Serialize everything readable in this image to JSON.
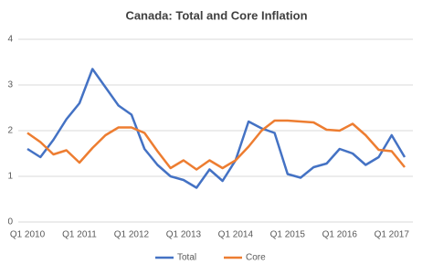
{
  "chart_data": {
    "type": "line",
    "title": "Canada: Total and Core Inflation",
    "categories": [
      "Q1 2010",
      null,
      null,
      null,
      "Q1 2011",
      null,
      null,
      null,
      "Q1 2012",
      null,
      null,
      null,
      "Q1 2013",
      null,
      null,
      null,
      "Q1 2014",
      null,
      null,
      null,
      "Q1 2015",
      null,
      null,
      null,
      "Q1 2016",
      null,
      null,
      null,
      "Q1 2017",
      null
    ],
    "series": [
      {
        "name": "Total",
        "color": "#4472c4",
        "values": [
          1.6,
          1.42,
          1.8,
          2.25,
          2.6,
          3.35,
          2.95,
          2.55,
          2.35,
          1.6,
          1.25,
          1.0,
          0.92,
          0.75,
          1.15,
          0.9,
          1.35,
          2.2,
          2.05,
          1.95,
          1.05,
          0.97,
          1.2,
          1.28,
          1.6,
          1.5,
          1.25,
          1.42,
          1.9,
          1.42
        ]
      },
      {
        "name": "Core",
        "color": "#ed7d31",
        "values": [
          1.95,
          1.75,
          1.48,
          1.57,
          1.3,
          1.62,
          1.9,
          2.07,
          2.07,
          1.95,
          1.55,
          1.18,
          1.35,
          1.15,
          1.35,
          1.18,
          1.35,
          1.65,
          2.0,
          2.22,
          2.22,
          2.2,
          2.18,
          2.02,
          2.0,
          2.15,
          1.9,
          1.58,
          1.55,
          1.2
        ]
      }
    ],
    "ylim": [
      0,
      4
    ],
    "yticks": [
      0,
      1,
      2,
      3,
      4
    ],
    "grid": true,
    "legend": "bottom"
  }
}
